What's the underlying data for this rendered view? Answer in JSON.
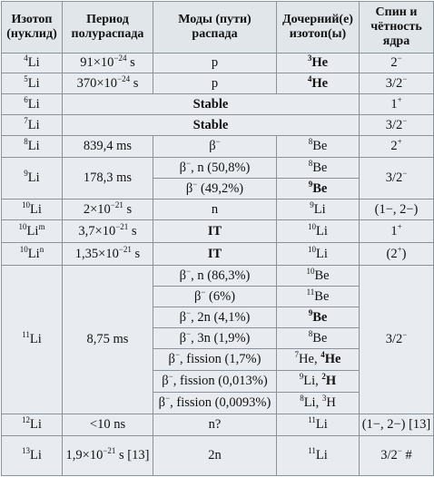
{
  "headers": {
    "isotope": [
      "Изотоп",
      "(нуклид)"
    ],
    "half_life": [
      "Период",
      "полураспада"
    ],
    "decay_modes": [
      "Моды (пути)",
      "распада"
    ],
    "daughter": [
      "Дочерний(е)",
      "изотоп(ы)"
    ],
    "spin": [
      "Спин и",
      "чётность",
      "ядра"
    ]
  },
  "rows": {
    "li4": {
      "mass": "4",
      "sym": "Li",
      "hl_base": "91×10",
      "hl_exp": "−24",
      "hl_unit": " s",
      "mode": "p",
      "d_mass": "3",
      "d_sym": "He",
      "spin": "2",
      "spin_sup": "−"
    },
    "li5": {
      "mass": "5",
      "sym": "Li",
      "hl_base": "370×10",
      "hl_exp": "−24",
      "hl_unit": " s",
      "mode": "p",
      "d_mass": "4",
      "d_sym": "He",
      "spin": "3/2",
      "spin_sup": "−"
    },
    "li6": {
      "mass": "6",
      "sym": "Li",
      "stable": "Stable",
      "spin": "1",
      "spin_sup": "+"
    },
    "li7": {
      "mass": "7",
      "sym": "Li",
      "stable": "Stable",
      "spin": "3/2",
      "spin_sup": "−"
    },
    "li8": {
      "mass": "8",
      "sym": "Li",
      "half_life": "839,4 ms",
      "mode_base": "β",
      "mode_sup": "−",
      "d_mass": "8",
      "d_sym": "Be",
      "spin": "2",
      "spin_sup": "+"
    },
    "li9": {
      "mass": "9",
      "sym": "Li",
      "half_life": "178,3 ms",
      "m1_base": "β",
      "m1_sup": "−",
      "m1_rest": ", n (50,8%)",
      "d1_mass": "8",
      "d1_sym": "Be",
      "m2_base": "β",
      "m2_sup": "−",
      "m2_rest": " (49,2%)",
      "d2_mass": "9",
      "d2_sym": "Be",
      "spin": "3/2",
      "spin_sup": "−"
    },
    "li10": {
      "mass": "10",
      "sym": "Li",
      "hl_base": "2×10",
      "hl_exp": "−21",
      "hl_unit": " s",
      "mode": "n",
      "d_mass": "9",
      "d_sym": "Li",
      "spin": "(1−, 2−)"
    },
    "li10m": {
      "mass": "10",
      "sym": "Li",
      "meta": "m",
      "hl_base": "3,7×10",
      "hl_exp": "−21",
      "hl_unit": " s",
      "mode": "IT",
      "d_mass": "10",
      "d_sym": "Li",
      "spin": "1",
      "spin_sup": "+"
    },
    "li10n": {
      "mass": "10",
      "sym": "Li",
      "meta": "n",
      "hl_base": "1,35×10",
      "hl_exp": "−21",
      "hl_unit": " s",
      "mode": "IT",
      "d_mass": "10",
      "d_sym": "Li",
      "spin_pre": "(2",
      "spin_sup": "+",
      "spin_post": ")"
    },
    "li11": {
      "mass": "11",
      "sym": "Li",
      "half_life": "8,75 ms",
      "spin": "3/2",
      "spin_sup": "−",
      "modes": [
        {
          "base": "β",
          "sup": "−",
          "rest": ", n (86,3%)",
          "d": [
            {
              "mass": "10",
              "sym": "Be"
            }
          ]
        },
        {
          "base": "β",
          "sup": "−",
          "rest": " (6%)",
          "d": [
            {
              "mass": "11",
              "sym": "Be"
            }
          ]
        },
        {
          "base": "β",
          "sup": "−",
          "rest": ", 2n (4,1%)",
          "d": [
            {
              "mass": "9",
              "sym": "Be"
            }
          ]
        },
        {
          "base": "β",
          "sup": "−",
          "rest": ", 3n (1,9%)",
          "d": [
            {
              "mass": "8",
              "sym": "Be"
            }
          ]
        },
        {
          "base": "β",
          "sup": "−",
          "rest": ", fission (1,7%)",
          "d": [
            {
              "mass": "7",
              "sym": "He"
            },
            {
              "mass": "4",
              "sym": "He"
            }
          ]
        },
        {
          "base": "β",
          "sup": "−",
          "rest": ", fission (0,013%)",
          "d": [
            {
              "mass": "9",
              "sym": "Li"
            },
            {
              "mass": "2",
              "sym": "H"
            }
          ]
        },
        {
          "base": "β",
          "sup": "−",
          "rest": ", fission (0,0093%)",
          "d": [
            {
              "mass": "8",
              "sym": "Li"
            },
            {
              "mass": "3",
              "sym": "H"
            }
          ]
        }
      ]
    },
    "li12": {
      "mass": "12",
      "sym": "Li",
      "half_life": "<10 ns",
      "mode": "n?",
      "d_mass": "11",
      "d_sym": "Li",
      "spin": "(1−, 2−) [13]"
    },
    "li13": {
      "mass": "13",
      "sym": "Li",
      "hl_base": "1,9×10",
      "hl_exp": "−21",
      "hl_unit": " s [13]",
      "mode": "2n",
      "d_mass": "11",
      "d_sym": "Li",
      "spin": "3/2",
      "spin_sup": "−",
      "spin_post": " #"
    }
  }
}
